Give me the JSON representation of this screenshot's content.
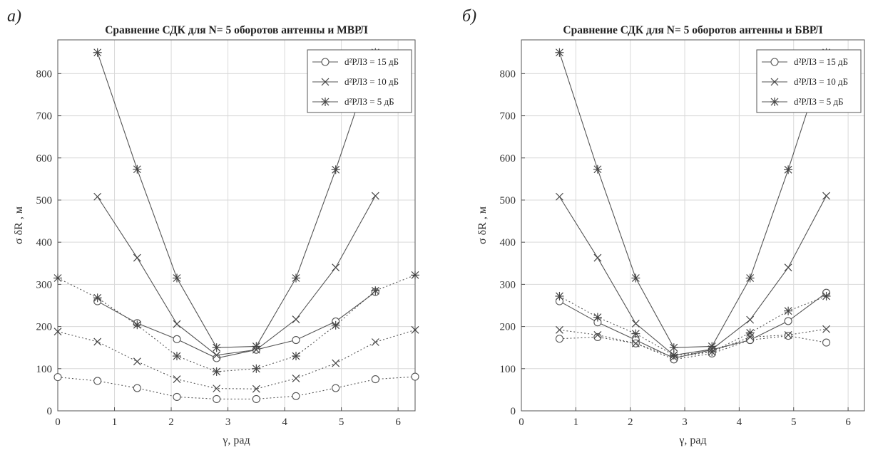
{
  "chart_data": [
    {
      "type": "line",
      "panel_label": "а)",
      "title": "Сравнение СДК для N= 5 оборотов антенны и МВРЛ",
      "xlabel": "γ, рад",
      "ylabel": "σ δR , м",
      "xlim": [
        0,
        6.3
      ],
      "ylim": [
        0,
        880
      ],
      "xticks": [
        0,
        1,
        2,
        3,
        4,
        5,
        6
      ],
      "yticks": [
        0,
        100,
        200,
        300,
        400,
        500,
        600,
        700,
        800
      ],
      "grid": true,
      "legend_position": "top-right",
      "legend": [
        "d²РЛЗ = 15 дБ",
        "d²РЛЗ = 10 дБ",
        "d²РЛЗ = 5 дБ"
      ],
      "series": [
        {
          "name": "d²РЛЗ = 15 дБ",
          "marker": "circle",
          "style": "solid",
          "x": [
            0.7,
            1.4,
            2.1,
            2.8,
            3.5,
            4.2,
            4.9,
            5.6
          ],
          "y": [
            260,
            208,
            170,
            125,
            145,
            168,
            212,
            282
          ]
        },
        {
          "name": "d²РЛЗ = 10 дБ",
          "marker": "x",
          "style": "solid",
          "x": [
            0.7,
            1.4,
            2.1,
            2.8,
            3.5,
            4.2,
            4.9,
            5.6
          ],
          "y": [
            508,
            363,
            206,
            132,
            145,
            217,
            340,
            510
          ]
        },
        {
          "name": "d²РЛЗ = 5 дБ",
          "marker": "asterisk",
          "style": "solid",
          "x": [
            0.7,
            1.4,
            2.1,
            2.8,
            3.5,
            4.2,
            4.9,
            5.6
          ],
          "y": [
            850,
            573,
            315,
            150,
            153,
            315,
            572,
            850
          ]
        },
        {
          "name": "",
          "marker": "circle",
          "style": "dotted",
          "x": [
            0,
            0.7,
            1.4,
            2.1,
            2.8,
            3.5,
            4.2,
            4.9,
            5.6,
            6.3
          ],
          "y": [
            80,
            71,
            54,
            33,
            28,
            28,
            35,
            54,
            75,
            81
          ]
        },
        {
          "name": "",
          "marker": "x",
          "style": "dotted",
          "x": [
            0,
            0.7,
            1.4,
            2.1,
            2.8,
            3.5,
            4.2,
            4.9,
            5.6,
            6.3
          ],
          "y": [
            188,
            164,
            117,
            75,
            53,
            52,
            77,
            113,
            163,
            192
          ]
        },
        {
          "name": "",
          "marker": "asterisk",
          "style": "dotted",
          "x": [
            0,
            0.7,
            1.4,
            2.1,
            2.8,
            3.5,
            4.2,
            4.9,
            5.6,
            6.3
          ],
          "y": [
            315,
            268,
            204,
            130,
            93,
            100,
            130,
            203,
            285,
            322
          ]
        }
      ]
    },
    {
      "type": "line",
      "panel_label": "б)",
      "title": "Сравнение СДК для N= 5 оборотов антенны и БВРЛ",
      "xlabel": "γ, рад",
      "ylabel": "σ δR , м",
      "xlim": [
        0,
        6.3
      ],
      "ylim": [
        0,
        880
      ],
      "xticks": [
        0,
        1,
        2,
        3,
        4,
        5,
        6
      ],
      "yticks": [
        0,
        100,
        200,
        300,
        400,
        500,
        600,
        700,
        800
      ],
      "grid": true,
      "legend_position": "top-right",
      "legend": [
        "d²РЛЗ = 15 дБ",
        "d²РЛЗ = 10 дБ",
        "d²РЛЗ = 5 дБ"
      ],
      "series": [
        {
          "name": "d²РЛЗ = 15 дБ",
          "marker": "circle",
          "style": "solid",
          "x": [
            0.7,
            1.4,
            2.1,
            2.8,
            3.5,
            4.2,
            4.9,
            5.6
          ],
          "y": [
            260,
            210,
            168,
            125,
            145,
            168,
            213,
            280
          ]
        },
        {
          "name": "d²РЛЗ = 10 дБ",
          "marker": "x",
          "style": "solid",
          "x": [
            0.7,
            1.4,
            2.1,
            2.8,
            3.5,
            4.2,
            4.9,
            5.6
          ],
          "y": [
            508,
            363,
            207,
            132,
            146,
            216,
            340,
            510
          ]
        },
        {
          "name": "d²РЛЗ = 5 дБ",
          "marker": "asterisk",
          "style": "solid",
          "x": [
            0.7,
            1.4,
            2.1,
            2.8,
            3.5,
            4.2,
            4.9,
            5.6
          ],
          "y": [
            850,
            573,
            315,
            150,
            153,
            315,
            572,
            850
          ]
        },
        {
          "name": "",
          "marker": "circle",
          "style": "dotted",
          "x": [
            0.7,
            1.4,
            2.1,
            2.8,
            3.5,
            4.2,
            4.9,
            5.6
          ],
          "y": [
            171,
            175,
            160,
            122,
            136,
            168,
            178,
            162
          ]
        },
        {
          "name": "",
          "marker": "x",
          "style": "dotted",
          "x": [
            0.7,
            1.4,
            2.1,
            2.8,
            3.5,
            4.2,
            4.9,
            5.6
          ],
          "y": [
            192,
            180,
            160,
            127,
            140,
            175,
            180,
            194
          ]
        },
        {
          "name": "",
          "marker": "asterisk",
          "style": "dotted",
          "x": [
            0.7,
            1.4,
            2.1,
            2.8,
            3.5,
            4.2,
            4.9,
            5.6
          ],
          "y": [
            272,
            222,
            183,
            132,
            140,
            185,
            237,
            272
          ]
        }
      ]
    }
  ]
}
